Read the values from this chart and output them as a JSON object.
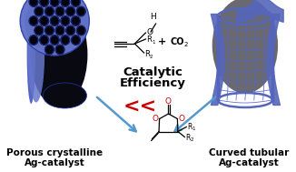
{
  "background_color": "#ffffff",
  "left_label_line1": "Porous crystalline",
  "left_label_line2": "Ag-catalyst",
  "right_label_line1": "Curved tubular",
  "right_label_line2": "Ag-catalyst",
  "catalytic_text1": "Catalytic",
  "catalytic_text2": "Efficiency",
  "less_than": "<<",
  "less_than_color": "#cc0000",
  "arrow_color": "#5599cc",
  "label_fontsize": 7.5,
  "catalytic_fontsize": 9.5,
  "tube_dark": "#080815",
  "tube_mid": "#4455aa",
  "tube_light": "#7788cc",
  "tube_blue": "#5566bb"
}
